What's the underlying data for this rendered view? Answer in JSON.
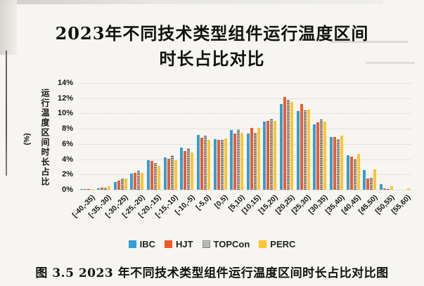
{
  "page": {
    "title_line1": "2023年不同技术类型组件运行温度区间",
    "title_line2": "时长占比对比",
    "caption": "图 3.5  2023 年不同技术类型组件运行温度区间时长占比对比图"
  },
  "chart_data": {
    "type": "bar",
    "title": "2023年不同技术类型组件运行温度区间时长占比对比",
    "xlabel": "",
    "ylabel": "运行温度区间时长占比",
    "ylabel_unit": "(%)",
    "ylim": [
      0,
      14
    ],
    "ytick_step": 2,
    "ytick_labels": [
      "0%",
      "2%",
      "4%",
      "6%",
      "8%",
      "10%",
      "12%",
      "14%"
    ],
    "grid": "horizontal-dotted",
    "legend_position": "bottom",
    "categories": [
      "[-40,-35)",
      "[-35,-30)",
      "[-30,-25)",
      "[-25,-20)",
      "[-20,-15)",
      "[-15,-10)",
      "[-10,-5)",
      "[-5,0)",
      "[0,5)",
      "[5,10)",
      "[10,15)",
      "[15,20)",
      "[20,25)",
      "[25,30)",
      "[30,35)",
      "[35,40)",
      "[40,45)",
      "[45,50)",
      "[50,55)",
      "[55,60)"
    ],
    "series": [
      {
        "name": "IBC",
        "color": "#2E9FD8",
        "texture": "solid",
        "values": [
          0.1,
          0.2,
          1.0,
          2.1,
          3.9,
          4.2,
          5.5,
          7.2,
          6.6,
          7.8,
          7.4,
          8.9,
          11.2,
          10.3,
          8.6,
          6.9,
          4.5,
          2.6,
          0.7,
          0.0
        ]
      },
      {
        "name": "HJT",
        "color": "#F15A29",
        "texture": "solid",
        "values": [
          0.1,
          0.25,
          1.2,
          2.2,
          3.8,
          4.1,
          5.1,
          6.8,
          6.5,
          7.4,
          8.1,
          9.0,
          12.2,
          11.2,
          8.8,
          6.9,
          4.3,
          1.5,
          0.15,
          0.0
        ]
      },
      {
        "name": "TOPCon",
        "color": "#ABABAB",
        "texture": "speckled",
        "values": [
          0.05,
          0.3,
          1.5,
          2.5,
          3.5,
          4.5,
          5.4,
          7.1,
          6.5,
          7.9,
          7.5,
          9.3,
          11.8,
          10.4,
          9.2,
          6.6,
          4.1,
          1.6,
          0.05,
          0.0
        ]
      },
      {
        "name": "PERC",
        "color": "#FFC430",
        "texture": "solid",
        "values": [
          0.1,
          0.5,
          1.5,
          2.2,
          3.1,
          3.9,
          4.9,
          6.5,
          6.7,
          7.5,
          8.1,
          9.0,
          11.5,
          10.5,
          8.9,
          7.1,
          4.7,
          2.7,
          0.5,
          0.15
        ]
      }
    ]
  }
}
